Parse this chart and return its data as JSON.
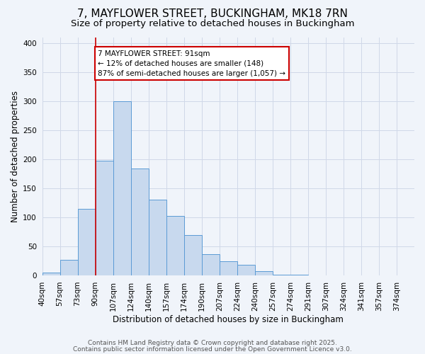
{
  "title_line1": "7, MAYFLOWER STREET, BUCKINGHAM, MK18 7RN",
  "title_line2": "Size of property relative to detached houses in Buckingham",
  "xlabel": "Distribution of detached houses by size in Buckingham",
  "ylabel": "Number of detached properties",
  "bin_labels": [
    "40sqm",
    "57sqm",
    "73sqm",
    "90sqm",
    "107sqm",
    "124sqm",
    "140sqm",
    "157sqm",
    "174sqm",
    "190sqm",
    "207sqm",
    "224sqm",
    "240sqm",
    "257sqm",
    "274sqm",
    "291sqm",
    "307sqm",
    "324sqm",
    "341sqm",
    "357sqm",
    "374sqm"
  ],
  "bar_heights": [
    5,
    27,
    115,
    198,
    300,
    184,
    131,
    103,
    70,
    37,
    25,
    18,
    8,
    2,
    1,
    0,
    0,
    0,
    0,
    0,
    0
  ],
  "bar_color": "#c8d9ee",
  "bar_edge_color": "#5b9bd5",
  "vline_x": 3,
  "vline_color": "#cc0000",
  "annotation_title": "7 MAYFLOWER STREET: 91sqm",
  "annotation_line1": "← 12% of detached houses are smaller (148)",
  "annotation_line2": "87% of semi-detached houses are larger (1,057) →",
  "annotation_box_color": "#ffffff",
  "annotation_box_edge_color": "#cc0000",
  "ylim": [
    0,
    410
  ],
  "yticks": [
    0,
    50,
    100,
    150,
    200,
    250,
    300,
    350,
    400
  ],
  "footer_line1": "Contains HM Land Registry data © Crown copyright and database right 2025.",
  "footer_line2": "Contains public sector information licensed under the Open Government Licence v3.0.",
  "bg_color": "#f0f4fa",
  "grid_color": "#d0d8e8",
  "title_fontsize": 11,
  "subtitle_fontsize": 9.5,
  "axis_label_fontsize": 8.5,
  "tick_fontsize": 7.5,
  "annotation_fontsize": 7.5,
  "footer_fontsize": 6.5
}
